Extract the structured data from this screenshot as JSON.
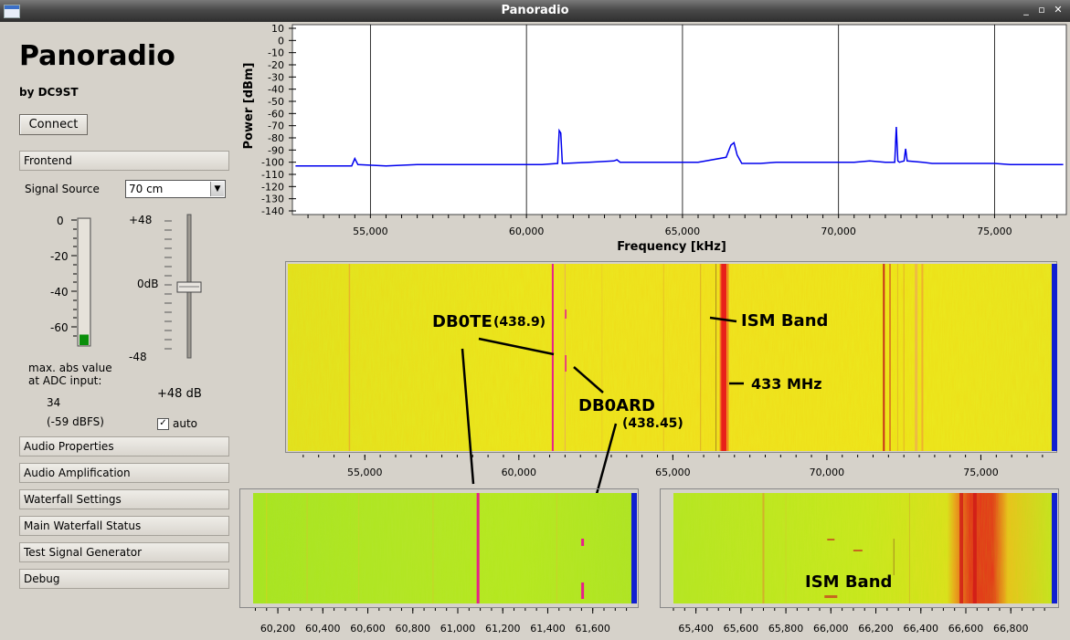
{
  "window": {
    "title": "Panoradio"
  },
  "app": {
    "title": "Panoradio",
    "byline": "by DC9ST",
    "connect_label": "Connect"
  },
  "frontend": {
    "section_label": "Frontend",
    "signal_source_label": "Signal Source",
    "signal_source_value": "70 cm",
    "meter_ticks": [
      "0",
      "-20",
      "-40",
      "-60"
    ],
    "meter_level_dbfs": -59,
    "adc_label_line1": "max. abs value",
    "adc_label_line2": "at ADC input:",
    "adc_value": "34",
    "adc_dbfs": "(-59 dBFS)",
    "gain_top": "+48",
    "gain_mid": "0dB",
    "gain_bottom": "-48",
    "gain_value": "+48 dB",
    "auto_label": "auto",
    "auto_checked": true
  },
  "sections": [
    {
      "label": "Audio Properties"
    },
    {
      "label": "Audio Amplification"
    },
    {
      "label": "Waterfall Settings"
    },
    {
      "label": "Main Waterfall Status"
    },
    {
      "label": "Test Signal Generator"
    },
    {
      "label": "Debug"
    }
  ],
  "chart_data": {
    "type": "line",
    "ylabel": "Power [dBm]",
    "xlabel": "Frequency [kHz]",
    "xlim": [
      52500,
      77300
    ],
    "ylim": [
      -140,
      10
    ],
    "y_ticks": [
      "10",
      "0",
      "-10",
      "-20",
      "-30",
      "-40",
      "-50",
      "-60",
      "-70",
      "-80",
      "-90",
      "-100",
      "-110",
      "-120",
      "-130",
      "-140"
    ],
    "x_ticks": [
      "55,000",
      "60,000",
      "65,000",
      "70,000",
      "75,000"
    ],
    "x_tick_values": [
      55000,
      60000,
      65000,
      70000,
      75000
    ],
    "grid": true,
    "color": "#0000ee",
    "series": [
      {
        "x": [
          52600,
          53500,
          54400,
          54500,
          54600,
          55500,
          56500,
          57500,
          58500,
          59500,
          60500,
          61000,
          61050,
          61100,
          61150,
          61200,
          62000,
          62800,
          62900,
          63000,
          63500,
          64500,
          65500,
          66400,
          66550,
          66650,
          66750,
          66900,
          67500,
          68000,
          68500,
          69500,
          70500,
          71000,
          71500,
          71800,
          71850,
          71900,
          71950,
          72100,
          72150,
          72200,
          72700,
          73000,
          74000,
          75000,
          75500,
          76500,
          77200
        ],
        "y": [
          -103,
          -103,
          -103,
          -97,
          -102,
          -103,
          -102,
          -102,
          -102,
          -102,
          -102,
          -101,
          -74,
          -76,
          -101,
          -101,
          -100,
          -99,
          -98,
          -100,
          -100,
          -100,
          -100,
          -96,
          -86,
          -84,
          -94,
          -101,
          -101,
          -100,
          -100,
          -100,
          -100,
          -99,
          -100,
          -100,
          -71,
          -99,
          -100,
          -99,
          -89,
          -99,
          -100,
          -101,
          -101,
          -101,
          -102,
          -102,
          -102
        ]
      }
    ]
  },
  "main_waterfall": {
    "x_ticks": [
      "55,000",
      "60,000",
      "65,000",
      "70,000",
      "75,000"
    ],
    "x_tick_values": [
      55000,
      60000,
      65000,
      70000,
      75000
    ],
    "annotations": {
      "db0te": "DB0TE",
      "db0te_freq": "(438.9)",
      "db0ard": "DB0ARD",
      "db0ard_freq": "(438.45)",
      "ism_band": "ISM Band",
      "mhz_433": "433 MHz"
    }
  },
  "zoom_left": {
    "x_ticks": [
      "60,200",
      "60,400",
      "60,600",
      "60,800",
      "61,000",
      "61,200",
      "61,400",
      "61,600"
    ],
    "x_tick_values": [
      60200,
      60400,
      60600,
      60800,
      61000,
      61200,
      61400,
      61600
    ],
    "xlim": [
      60090,
      61780
    ]
  },
  "zoom_right": {
    "x_ticks": [
      "65,400",
      "65,600",
      "65,800",
      "66,000",
      "66,200",
      "66,400",
      "66,600",
      "66,800"
    ],
    "x_tick_values": [
      65400,
      65600,
      65800,
      66000,
      66200,
      66400,
      66600,
      66800
    ],
    "xlim": [
      65300,
      66990
    ],
    "annotation": "ISM Band"
  },
  "colors": {
    "waterfall_base": "#ecec1a",
    "signal": "#e8208a",
    "hot": "#e8201a",
    "edge": "#1020d0"
  }
}
